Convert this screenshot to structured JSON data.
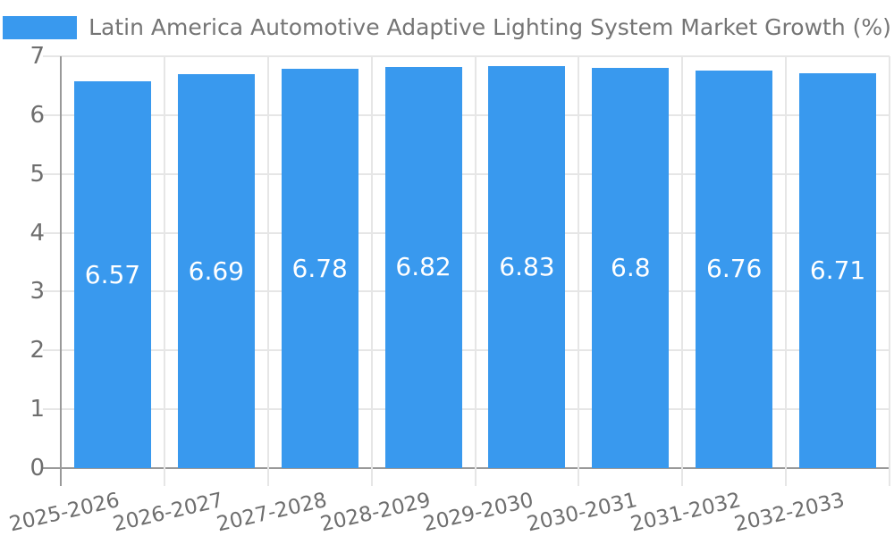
{
  "chart_data": {
    "type": "bar",
    "title": "Latin America Automotive Adaptive Lighting System Market Growth (%)",
    "legend": {
      "position": "top",
      "label": "Latin America Automotive Adaptive Lighting System Market Growth (%)"
    },
    "categories": [
      "2025-2026",
      "2026-2027",
      "2027-2028",
      "2028-2029",
      "2029-2030",
      "2030-2031",
      "2031-2032",
      "2032-2033"
    ],
    "values": [
      6.57,
      6.69,
      6.78,
      6.82,
      6.83,
      6.8,
      6.76,
      6.71
    ],
    "value_labels": [
      "6.57",
      "6.69",
      "6.78",
      "6.82",
      "6.83",
      "6.8",
      "6.76",
      "6.71"
    ],
    "xlabel": "",
    "ylabel": "",
    "ylim": [
      0,
      7
    ],
    "y_ticks": [
      0,
      1,
      2,
      3,
      4,
      5,
      6,
      7
    ],
    "grid": true,
    "x_label_rotation_deg": -13,
    "colors": {
      "bar": "#3999EE",
      "bar_value_text": "#FFFFFF",
      "axis_line": "#999999",
      "grid_line": "#E6E6E6",
      "tick_text": "#6E6E6E",
      "title_text": "#757575"
    }
  }
}
